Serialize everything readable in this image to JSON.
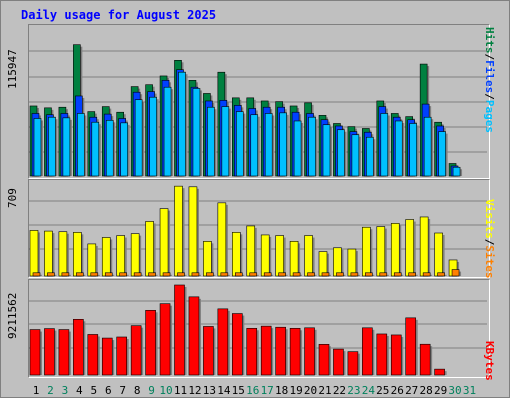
{
  "title": "Daily usage for August 2025",
  "legends": {
    "hits_panel": [
      {
        "text": "Hits",
        "color": "#008040"
      },
      {
        "text": "/",
        "color": "#000000"
      },
      {
        "text": "Files",
        "color": "#0040ff"
      },
      {
        "text": "/",
        "color": "#000000"
      },
      {
        "text": "Pages",
        "color": "#00c0ff"
      }
    ],
    "visits_panel": [
      {
        "text": "Visits",
        "color": "#ffff00"
      },
      {
        "text": "/",
        "color": "#000000"
      },
      {
        "text": "Sites",
        "color": "#ff8000"
      }
    ],
    "kbytes_panel": [
      {
        "text": "KBytes",
        "color": "#ff0000"
      }
    ]
  },
  "colors": {
    "hits": "#008040",
    "files": "#0040ff",
    "pages": "#00c0ff",
    "visits": "#ffff00",
    "sites": "#ff8000",
    "kbytes": "#ff0000",
    "day_weekday": "#000000",
    "day_weekend": "#00805c"
  },
  "chart_data": [
    {
      "type": "bar",
      "title": "Hits / Files / Pages",
      "max_label": "115947",
      "ylim": [
        0,
        115947
      ],
      "grid": true,
      "categories": [
        "1",
        "2",
        "3",
        "4",
        "5",
        "6",
        "7",
        "8",
        "9",
        "10",
        "11",
        "12",
        "13",
        "14",
        "15",
        "16",
        "17",
        "18",
        "19",
        "20",
        "21",
        "22",
        "23",
        "24",
        "25",
        "26",
        "27",
        "28",
        "29",
        "30",
        "31"
      ],
      "weekend_days": [
        "2",
        "3",
        "9",
        "10",
        "16",
        "17",
        "23",
        "24",
        "30",
        "31"
      ],
      "series": [
        {
          "name": "Hits",
          "values": [
            56000,
            54500,
            55000,
            105000,
            51500,
            55500,
            51000,
            71500,
            73000,
            80000,
            92500,
            76500,
            66000,
            83000,
            62500,
            62500,
            60000,
            59500,
            56000,
            58500,
            48500,
            42000,
            39500,
            38000,
            60000,
            50000,
            47500,
            89500,
            43000,
            10000,
            0
          ]
        },
        {
          "name": "Files",
          "values": [
            50000,
            49000,
            50000,
            64000,
            47000,
            49500,
            46000,
            67000,
            67500,
            76500,
            85000,
            71000,
            60000,
            60500,
            56500,
            54000,
            55000,
            55000,
            51000,
            50000,
            45000,
            40000,
            35500,
            35000,
            55500,
            47000,
            45000,
            57500,
            40000,
            8000,
            0
          ]
        },
        {
          "name": "Pages",
          "values": [
            46000,
            47000,
            46500,
            50000,
            43000,
            44500,
            42500,
            61000,
            63000,
            71000,
            83000,
            70000,
            55000,
            55500,
            51500,
            49000,
            50000,
            50500,
            44000,
            47000,
            41000,
            37000,
            33000,
            31000,
            50000,
            44000,
            42000,
            47000,
            35500,
            7000,
            0
          ]
        }
      ]
    },
    {
      "type": "bar",
      "title": "Visits / Sites",
      "max_label": "709",
      "ylim": [
        0,
        709
      ],
      "grid": true,
      "categories": [
        "1",
        "2",
        "3",
        "4",
        "5",
        "6",
        "7",
        "8",
        "9",
        "10",
        "11",
        "12",
        "13",
        "14",
        "15",
        "16",
        "17",
        "18",
        "19",
        "20",
        "21",
        "22",
        "23",
        "24",
        "25",
        "26",
        "27",
        "28",
        "29",
        "30",
        "31"
      ],
      "series": [
        {
          "name": "Visits",
          "values": [
            355,
            350,
            345,
            340,
            250,
            300,
            315,
            330,
            425,
            525,
            700,
            695,
            270,
            570,
            340,
            390,
            320,
            315,
            270,
            315,
            190,
            220,
            210,
            380,
            385,
            410,
            440,
            460,
            335,
            125,
            0
          ]
        },
        {
          "name": "Sites",
          "values": [
            25,
            25,
            25,
            25,
            25,
            25,
            25,
            25,
            25,
            25,
            25,
            25,
            25,
            25,
            25,
            25,
            25,
            25,
            25,
            25,
            25,
            25,
            25,
            25,
            25,
            25,
            25,
            25,
            25,
            50,
            0
          ]
        }
      ]
    },
    {
      "type": "bar",
      "title": "KBytes",
      "max_label": "9211562",
      "ylim": [
        0,
        9211562
      ],
      "grid": true,
      "categories": [
        "1",
        "2",
        "3",
        "4",
        "5",
        "6",
        "7",
        "8",
        "9",
        "10",
        "11",
        "12",
        "13",
        "14",
        "15",
        "16",
        "17",
        "18",
        "19",
        "20",
        "21",
        "22",
        "23",
        "24",
        "25",
        "26",
        "27",
        "28",
        "29",
        "30",
        "31"
      ],
      "series": [
        {
          "name": "KBytes",
          "values": [
            4650000,
            4750000,
            4650000,
            5700000,
            4150000,
            3780000,
            3890000,
            5050000,
            6620000,
            7300000,
            9211562,
            8000000,
            4970000,
            6770000,
            6290000,
            4780000,
            5000000,
            4890000,
            4780000,
            4830000,
            3140000,
            2650000,
            2390000,
            4830000,
            4200000,
            4100000,
            5850000,
            3150000,
            600000,
            0,
            0
          ]
        }
      ]
    }
  ]
}
